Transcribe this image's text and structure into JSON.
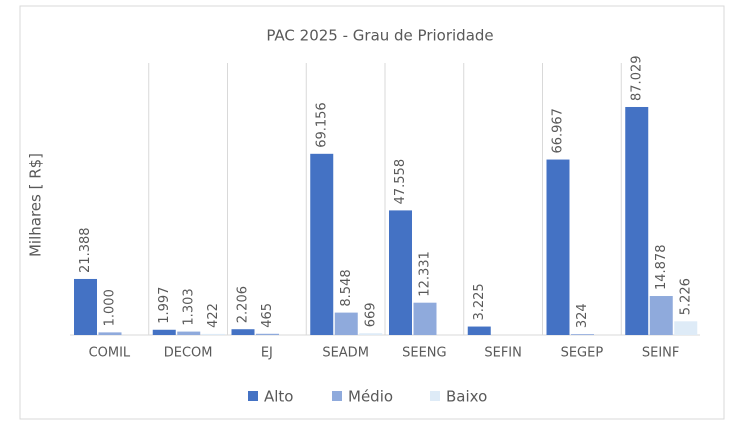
{
  "chart_data": {
    "type": "bar",
    "title": "PAC 2025 - Grau de Prioridade",
    "y_label": "Milhares [ R$]",
    "categories": [
      "COMIL",
      "DECOM",
      "EJ",
      "SEADM",
      "SEENG",
      "SEFIN",
      "SEGEP",
      "SEINF"
    ],
    "series": [
      {
        "name": "Alto",
        "color": "#4472c4",
        "values": [
          21388,
          1997,
          2206,
          69156,
          47558,
          3225,
          66967,
          87029
        ],
        "value_labels": [
          "21.388",
          "1.997",
          "2.206",
          "69.156",
          "47.558",
          "3.225",
          "66.967",
          "87.029"
        ]
      },
      {
        "name": "Médio",
        "color": "#8faadc",
        "values": [
          1000,
          1303,
          465,
          8548,
          12331,
          null,
          324,
          14878
        ],
        "value_labels": [
          "1.000",
          "1.303",
          "465",
          "8.548",
          "12.331",
          null,
          "324",
          "14.878"
        ]
      },
      {
        "name": "Baixo",
        "color": "#deebf7",
        "values": [
          null,
          422,
          null,
          669,
          null,
          null,
          null,
          5226
        ],
        "value_labels": [
          null,
          "422",
          null,
          "669",
          null,
          null,
          null,
          "5.226"
        ]
      }
    ],
    "ylim": [
      0,
      100000
    ],
    "legend": "bottom"
  }
}
